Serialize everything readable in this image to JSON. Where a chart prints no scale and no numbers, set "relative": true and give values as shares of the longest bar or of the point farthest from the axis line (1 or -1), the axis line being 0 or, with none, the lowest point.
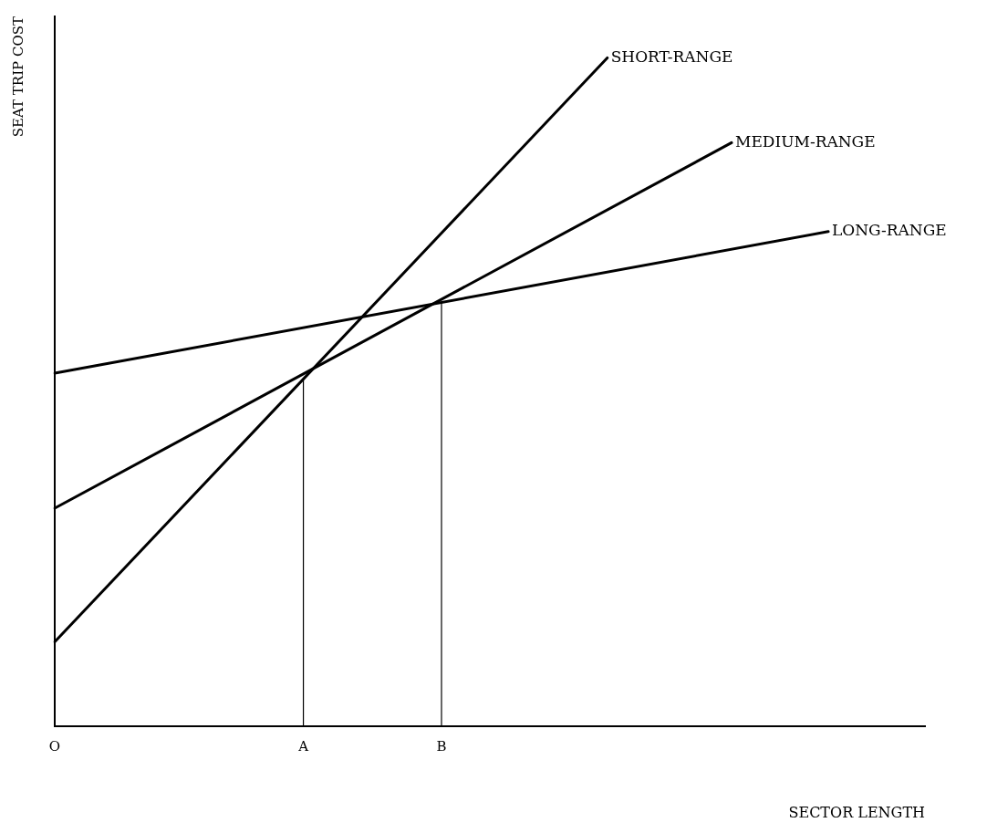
{
  "chart_data": {
    "type": "line",
    "relative": true,
    "xlabel": "SECTOR LENGTH",
    "ylabel": "SEAT TRIP COST",
    "categories": [
      "O",
      null,
      null,
      null,
      null,
      null,
      null,
      null,
      null,
      null,
      null,
      null,
      null,
      null,
      null,
      null,
      null,
      null,
      "A",
      null,
      null,
      null,
      null,
      null,
      null,
      null,
      null,
      null,
      "B",
      null,
      null,
      null,
      null,
      null,
      null,
      null,
      null,
      null,
      null,
      null,
      null,
      null,
      null,
      null,
      null,
      null,
      null,
      null,
      null,
      null,
      null,
      null,
      null,
      null,
      null,
      null,
      null,
      null,
      null,
      null,
      null,
      null,
      null,
      null
    ],
    "grid": false,
    "legend": false,
    "marker": "none",
    "line_style": "solid",
    "ref_lines": [
      {
        "axis": "x",
        "value": "A",
        "color": "#000000"
      },
      {
        "axis": "x",
        "value": "B",
        "color": "#000000"
      }
    ],
    "series": [
      {
        "name": "SHORT-RANGE",
        "color": "#000000",
        "values": [
          0.126,
          null,
          null,
          null,
          null,
          null,
          null,
          null,
          null,
          null,
          null,
          null,
          null,
          null,
          null,
          null,
          null,
          null,
          null,
          null,
          null,
          null,
          null,
          null,
          null,
          null,
          null,
          null,
          null,
          null,
          null,
          null,
          null,
          null,
          null,
          null,
          null,
          null,
          null,
          null,
          1,
          null,
          null,
          null,
          null,
          null,
          null,
          null,
          null,
          null,
          null,
          null,
          null,
          null,
          null,
          null,
          null,
          null,
          null,
          null,
          null,
          null,
          null,
          null
        ]
      },
      {
        "name": "MEDIUM-RANGE",
        "color": "#000000",
        "values": [
          0.326,
          null,
          null,
          null,
          null,
          null,
          null,
          null,
          null,
          null,
          null,
          null,
          null,
          null,
          null,
          null,
          null,
          null,
          null,
          null,
          null,
          null,
          null,
          null,
          null,
          null,
          null,
          null,
          null,
          null,
          null,
          null,
          null,
          null,
          null,
          null,
          null,
          null,
          null,
          null,
          null,
          null,
          null,
          null,
          null,
          null,
          null,
          null,
          null,
          0.873,
          null,
          null,
          null,
          null,
          null,
          null,
          null,
          null,
          null,
          null,
          null,
          null,
          null,
          null
        ]
      },
      {
        "name": "LONG-RANGE",
        "color": "#000000",
        "values": [
          0.528,
          null,
          null,
          null,
          null,
          null,
          null,
          null,
          null,
          null,
          null,
          null,
          null,
          null,
          null,
          null,
          null,
          null,
          null,
          null,
          null,
          null,
          null,
          null,
          null,
          null,
          null,
          null,
          null,
          null,
          null,
          null,
          null,
          null,
          null,
          null,
          null,
          null,
          null,
          null,
          null,
          null,
          null,
          null,
          null,
          null,
          null,
          null,
          null,
          null,
          null,
          null,
          null,
          null,
          null,
          null,
          0.74,
          null,
          null,
          null,
          null,
          null,
          null,
          null
        ]
      }
    ]
  }
}
